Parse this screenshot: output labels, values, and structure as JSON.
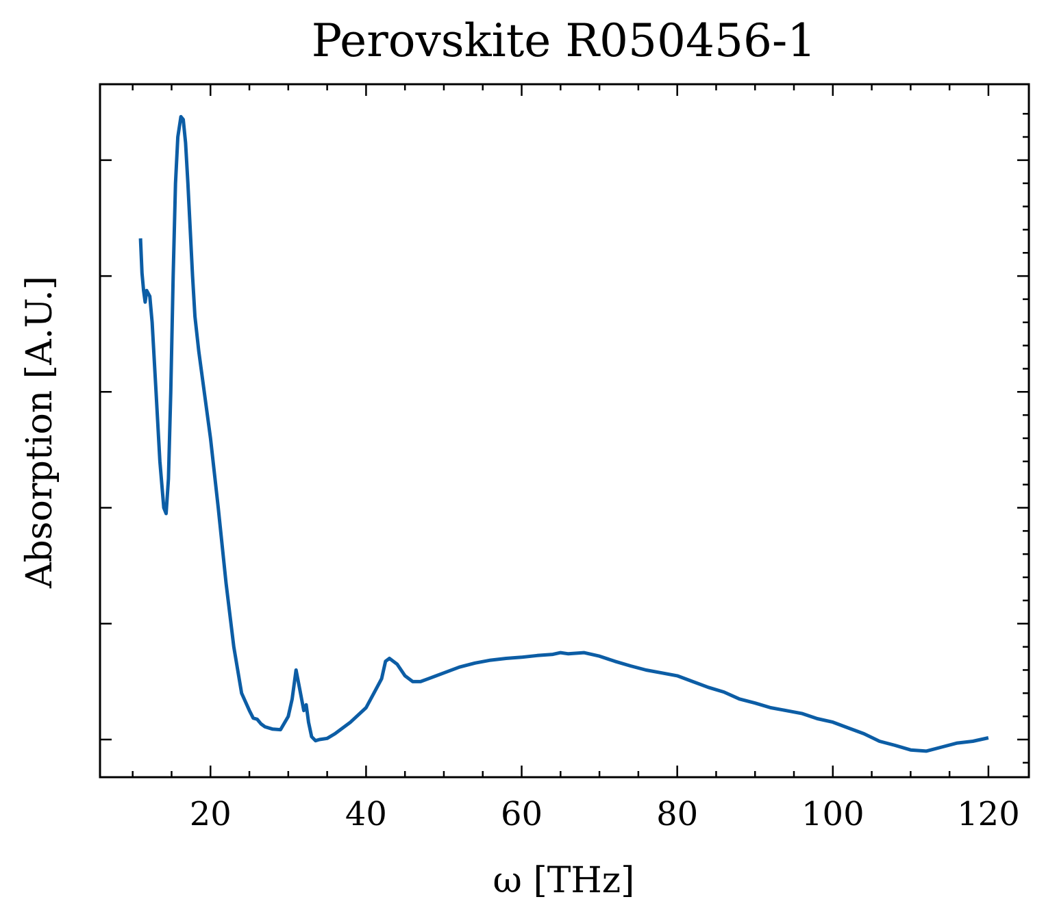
{
  "chart_data": {
    "type": "line",
    "title": "Perovskite R050456-1",
    "xlabel": "ω [THz]",
    "ylabel": "Absorption [A.U.]",
    "xlim": [
      5.8,
      125.2
    ],
    "ylim": [
      -0.065,
      1.131
    ],
    "x_ticks": [
      20,
      40,
      60,
      80,
      100,
      120
    ],
    "x_tick_labels": [
      "20",
      "40",
      "60",
      "80",
      "100",
      "120"
    ],
    "y_ticks": [
      0.0,
      0.2,
      0.4,
      0.6,
      0.8,
      1.0
    ],
    "y_tick_labels_shown": false,
    "grid": false,
    "legend": "none",
    "line_color": "#0C5DA5",
    "series": [
      {
        "x": [
          11.0,
          11.2,
          11.4,
          11.6,
          11.8,
          12.0,
          12.2,
          12.5,
          13.0,
          13.5,
          14.0,
          14.3,
          14.6,
          14.9,
          15.2,
          15.5,
          15.8,
          16.2,
          16.5,
          16.8,
          17.1,
          17.4,
          17.7,
          18.0,
          18.5,
          19.0,
          20.0,
          21.0,
          22.0,
          23.0,
          24.0,
          25.0,
          25.5,
          26.0,
          26.5,
          27.0,
          28.0,
          29.0,
          30.0,
          30.5,
          31.0,
          31.5,
          32.0,
          32.3,
          32.6,
          33.0,
          33.5,
          34.0,
          35.0,
          36.0,
          38.0,
          40.0,
          41.0,
          42.0,
          42.5,
          43.0,
          44.0,
          45.0,
          46.0,
          47.0,
          48.0,
          50.0,
          52.0,
          54.0,
          56.0,
          58.0,
          60.0,
          62.0,
          64.0,
          65.0,
          66.0,
          68.0,
          70.0,
          72.0,
          74.0,
          76.0,
          78.0,
          80.0,
          82.0,
          84.0,
          86.0,
          88.0,
          90.0,
          92.0,
          94.0,
          96.0,
          98.0,
          100.0,
          102.0,
          104.0,
          106.0,
          108.0,
          110.0,
          112.0,
          114.0,
          116.0,
          118.0,
          120.0
        ],
        "y": [
          0.865,
          0.805,
          0.775,
          0.755,
          0.775,
          0.77,
          0.765,
          0.72,
          0.6,
          0.48,
          0.4,
          0.39,
          0.45,
          0.6,
          0.8,
          0.96,
          1.04,
          1.075,
          1.07,
          1.03,
          0.96,
          0.88,
          0.8,
          0.73,
          0.67,
          0.62,
          0.52,
          0.4,
          0.27,
          0.16,
          0.08,
          0.05,
          0.037,
          0.035,
          0.027,
          0.022,
          0.018,
          0.017,
          0.04,
          0.07,
          0.12,
          0.085,
          0.05,
          0.06,
          0.03,
          0.005,
          -0.002,
          0.0,
          0.002,
          0.01,
          0.03,
          0.055,
          0.08,
          0.105,
          0.135,
          0.14,
          0.13,
          0.11,
          0.1,
          0.1,
          0.105,
          0.115,
          0.125,
          0.132,
          0.137,
          0.14,
          0.142,
          0.145,
          0.147,
          0.15,
          0.148,
          0.15,
          0.144,
          0.135,
          0.127,
          0.12,
          0.115,
          0.11,
          0.1,
          0.09,
          0.082,
          0.07,
          0.063,
          0.055,
          0.05,
          0.045,
          0.036,
          0.03,
          0.02,
          0.01,
          -0.003,
          -0.01,
          -0.018,
          -0.02,
          -0.013,
          -0.006,
          -0.003,
          0.003
        ]
      }
    ]
  }
}
